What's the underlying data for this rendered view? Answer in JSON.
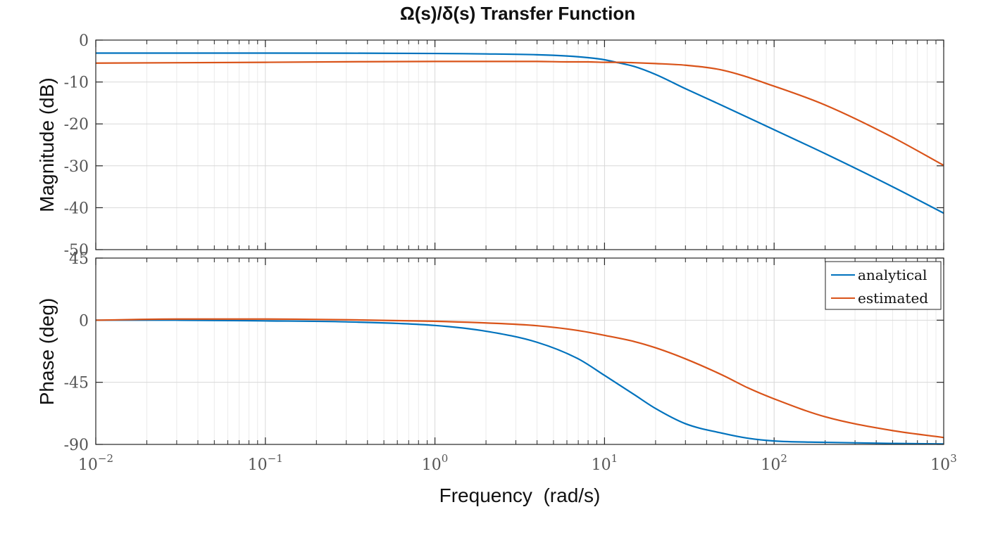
{
  "chart_data": {
    "type": "line",
    "title": "Ω(s)/δ(s) Transfer Function",
    "xlabel": "Frequency  (rad/s)",
    "xscale": "log",
    "xlim": [
      0.01,
      1000
    ],
    "x_ticks": [
      {
        "value": 0.01,
        "base": "10",
        "exp": "−2"
      },
      {
        "value": 0.1,
        "base": "10",
        "exp": "−1"
      },
      {
        "value": 1,
        "base": "10",
        "exp": "0"
      },
      {
        "value": 10,
        "base": "10",
        "exp": "1"
      },
      {
        "value": 100,
        "base": "10",
        "exp": "2"
      },
      {
        "value": 1000,
        "base": "10",
        "exp": "3"
      }
    ],
    "grid": true,
    "legend": {
      "placement": "top-right",
      "entries": [
        "analytical",
        "estimated"
      ]
    },
    "colors": {
      "analytical": "#0072BD",
      "estimated": "#D95319"
    },
    "panels": [
      {
        "id": "magnitude",
        "ylabel": "Magnitude (dB)",
        "ylim": [
          -50,
          0
        ],
        "y_ticks": [
          0,
          -10,
          -20,
          -30,
          -40,
          -50
        ],
        "y_tick_labels": [
          "0",
          "-10",
          "-20",
          "-30",
          "-40",
          "-50"
        ],
        "x": [
          0.01,
          0.1,
          1,
          2,
          4,
          6,
          8,
          10,
          12,
          15,
          20,
          30,
          50,
          100,
          200,
          500,
          1000
        ],
        "series": [
          {
            "name": "analytical",
            "values": [
              -3.1,
              -3.1,
              -3.2,
              -3.3,
              -3.5,
              -3.8,
              -4.2,
              -4.7,
              -5.4,
              -6.3,
              -8.2,
              -11.6,
              -15.7,
              -21.4,
              -27.1,
              -35.0,
              -41.3
            ]
          },
          {
            "name": "estimated",
            "values": [
              -5.5,
              -5.3,
              -5.1,
              -5.1,
              -5.1,
              -5.2,
              -5.2,
              -5.3,
              -5.3,
              -5.4,
              -5.6,
              -6.0,
              -7.2,
              -11.0,
              -15.5,
              -23.2,
              -29.9
            ]
          }
        ]
      },
      {
        "id": "phase",
        "ylabel": "Phase (deg)",
        "ylim": [
          -90,
          45
        ],
        "y_ticks": [
          45,
          0,
          -45,
          -90
        ],
        "y_tick_labels": [
          "45",
          "0",
          "-45",
          "-90"
        ],
        "x": [
          0.01,
          0.03,
          0.1,
          0.3,
          1,
          2,
          4,
          7,
          10,
          15,
          20,
          30,
          50,
          70,
          100,
          200,
          500,
          1000
        ],
        "series": [
          {
            "name": "analytical",
            "values": [
              0,
              0,
              -0.5,
              -1.2,
              -3.8,
              -8,
              -16,
              -28,
              -40,
              -54,
              -64,
              -75,
              -82,
              -85.5,
              -87.5,
              -88.5,
              -89.3,
              -89.7
            ]
          },
          {
            "name": "estimated",
            "values": [
              0,
              0.8,
              0.8,
              0.3,
              -0.8,
              -2,
              -4,
              -7.5,
              -11,
              -15.5,
              -20,
              -28,
              -40,
              -49,
              -57,
              -70,
              -80,
              -85
            ]
          }
        ]
      }
    ]
  }
}
